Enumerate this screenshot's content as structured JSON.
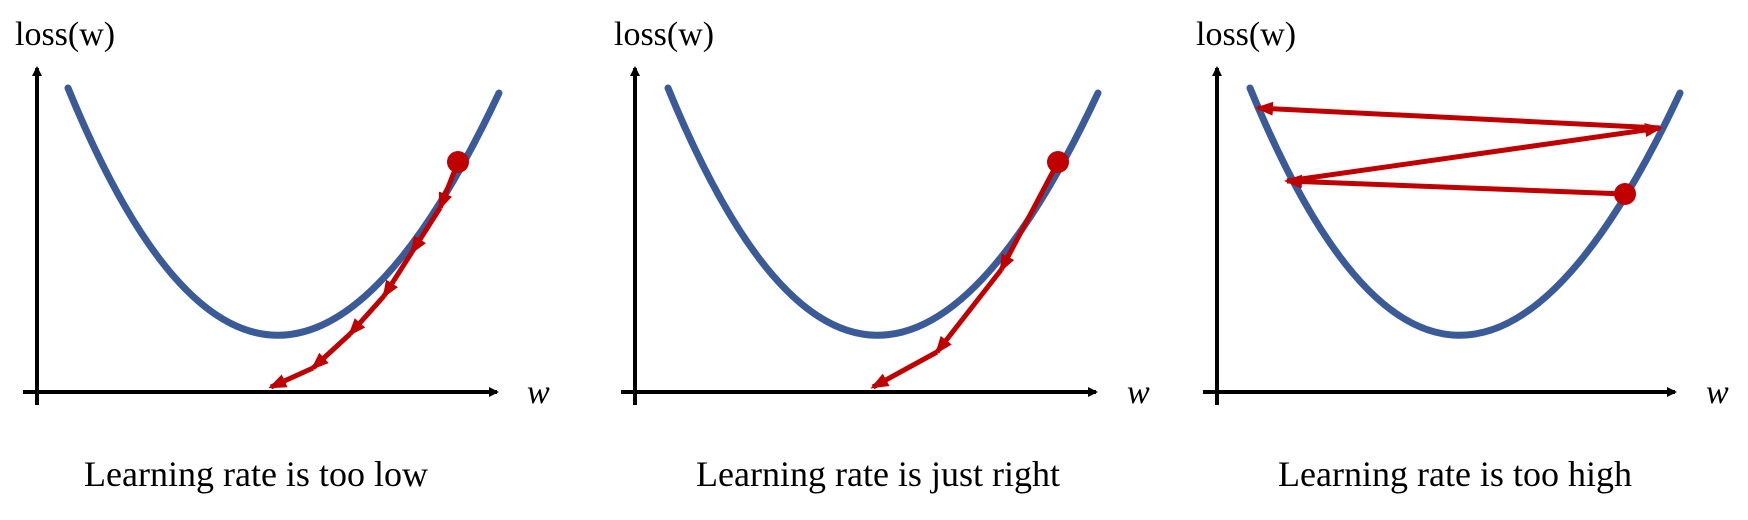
{
  "colors": {
    "curve": "#3b5a98",
    "arrow": "#c00000",
    "axis": "#000000",
    "background": "#ffffff"
  },
  "panels": [
    {
      "y_label": "loss(w)",
      "x_label": "w",
      "caption": "Learning rate is too low"
    },
    {
      "y_label": "loss(w)",
      "x_label": "w",
      "caption": "Learning rate is just right"
    },
    {
      "y_label": "loss(w)",
      "x_label": "w",
      "caption": "Learning rate is too high"
    }
  ]
}
